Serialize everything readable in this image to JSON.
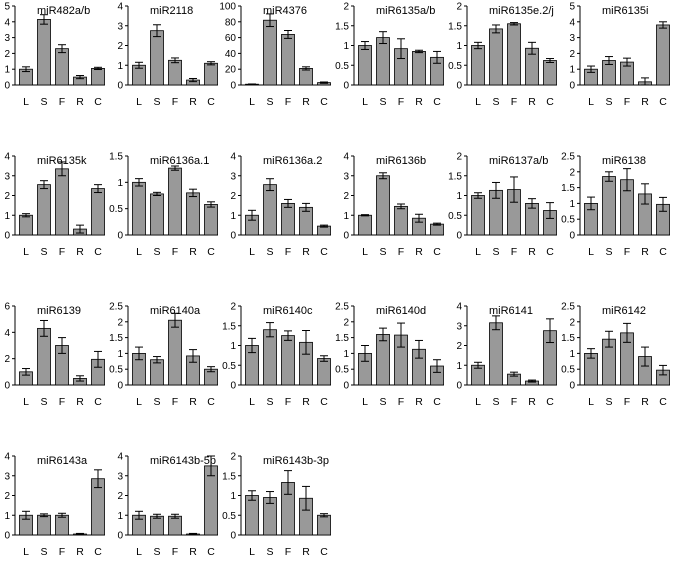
{
  "style": {
    "bar_color": "#999999",
    "axis_color": "#000000",
    "background": "#ffffff"
  },
  "chart_data": [
    {
      "type": "bar",
      "title": "miR482a/b",
      "categories": [
        "L",
        "S",
        "F",
        "R",
        "C"
      ],
      "ylim": [
        0,
        5
      ],
      "yticks": [
        "0",
        "1",
        "2",
        "3",
        "4",
        "5"
      ],
      "values": [
        1.0,
        4.15,
        2.3,
        0.5,
        1.05
      ],
      "errors": [
        0.15,
        0.3,
        0.25,
        0.1,
        0.07
      ]
    },
    {
      "type": "bar",
      "title": "miR2118",
      "categories": [
        "L",
        "S",
        "F",
        "R",
        "C"
      ],
      "ylim": [
        0,
        4
      ],
      "yticks": [
        "0",
        "1",
        "2",
        "3",
        "4"
      ],
      "values": [
        1.0,
        2.75,
        1.25,
        0.25,
        1.1
      ],
      "errors": [
        0.15,
        0.3,
        0.12,
        0.08,
        0.08
      ]
    },
    {
      "type": "bar",
      "title": "miR4376",
      "categories": [
        "L",
        "S",
        "F",
        "R",
        "C"
      ],
      "ylim": [
        0,
        100
      ],
      "yticks": [
        "0",
        "20",
        "40",
        "60",
        "80",
        "100"
      ],
      "values": [
        1.0,
        82.0,
        64.0,
        21.0,
        3.0
      ],
      "errors": [
        0.3,
        8.0,
        5.0,
        2.0,
        0.8
      ]
    },
    {
      "type": "bar",
      "title": "miR6135a/b",
      "categories": [
        "L",
        "S",
        "F",
        "R",
        "C"
      ],
      "ylim": [
        0,
        2
      ],
      "yticks": [
        "0",
        "0.5",
        "1",
        "1.5",
        "2"
      ],
      "values": [
        1.0,
        1.2,
        0.92,
        0.85,
        0.7
      ],
      "errors": [
        0.1,
        0.15,
        0.25,
        0.03,
        0.15
      ]
    },
    {
      "type": "bar",
      "title": "miR6135e.2/j",
      "categories": [
        "L",
        "S",
        "F",
        "R",
        "C"
      ],
      "ylim": [
        0,
        2
      ],
      "yticks": [
        "0",
        "0.5",
        "1",
        "1.5",
        "2"
      ],
      "values": [
        1.0,
        1.42,
        1.55,
        0.93,
        0.62
      ],
      "errors": [
        0.08,
        0.1,
        0.03,
        0.15,
        0.05
      ]
    },
    {
      "type": "bar",
      "title": "miR6135i",
      "categories": [
        "L",
        "S",
        "F",
        "R",
        "C"
      ],
      "ylim": [
        0,
        5
      ],
      "yticks": [
        "0",
        "1",
        "2",
        "3",
        "4",
        "5"
      ],
      "values": [
        1.0,
        1.55,
        1.45,
        0.2,
        3.8
      ],
      "errors": [
        0.2,
        0.25,
        0.25,
        0.25,
        0.2
      ]
    },
    {
      "type": "bar",
      "title": "miR6135k",
      "categories": [
        "L",
        "S",
        "F",
        "R",
        "C"
      ],
      "ylim": [
        0,
        4
      ],
      "yticks": [
        "0",
        "1",
        "2",
        "3",
        "4"
      ],
      "values": [
        1.0,
        2.55,
        3.35,
        0.3,
        2.35
      ],
      "errors": [
        0.08,
        0.2,
        0.35,
        0.2,
        0.2
      ]
    },
    {
      "type": "bar",
      "title": "miR6136a.1",
      "categories": [
        "L",
        "S",
        "F",
        "R",
        "C"
      ],
      "ylim": [
        0,
        1.5
      ],
      "yticks": [
        "0",
        "0.5",
        "1",
        "1.5"
      ],
      "values": [
        1.0,
        0.78,
        1.27,
        0.8,
        0.58
      ],
      "errors": [
        0.07,
        0.03,
        0.04,
        0.07,
        0.05
      ]
    },
    {
      "type": "bar",
      "title": "miR6136a.2",
      "categories": [
        "L",
        "S",
        "F",
        "R",
        "C"
      ],
      "ylim": [
        0,
        4
      ],
      "yticks": [
        "0",
        "1",
        "2",
        "3",
        "4"
      ],
      "values": [
        1.0,
        2.55,
        1.6,
        1.4,
        0.45
      ],
      "errors": [
        0.25,
        0.3,
        0.2,
        0.2,
        0.05
      ]
    },
    {
      "type": "bar",
      "title": "miR6136b",
      "categories": [
        "L",
        "S",
        "F",
        "R",
        "C"
      ],
      "ylim": [
        0,
        4
      ],
      "yticks": [
        "0",
        "1",
        "2",
        "3",
        "4"
      ],
      "values": [
        1.0,
        3.0,
        1.45,
        0.85,
        0.55
      ],
      "errors": [
        0.03,
        0.15,
        0.12,
        0.2,
        0.05
      ]
    },
    {
      "type": "bar",
      "title": "miR6137a/b",
      "categories": [
        "L",
        "S",
        "F",
        "R",
        "C"
      ],
      "ylim": [
        0,
        2
      ],
      "yticks": [
        "0",
        "0.5",
        "1",
        "1.5",
        "2"
      ],
      "values": [
        1.0,
        1.13,
        1.15,
        0.8,
        0.62
      ],
      "errors": [
        0.07,
        0.2,
        0.32,
        0.12,
        0.2
      ]
    },
    {
      "type": "bar",
      "title": "miR6138",
      "categories": [
        "L",
        "S",
        "F",
        "R",
        "C"
      ],
      "ylim": [
        0,
        2.5
      ],
      "yticks": [
        "0",
        "0.5",
        "1",
        "1.5",
        "2",
        "2.5"
      ],
      "values": [
        1.0,
        1.85,
        1.75,
        1.3,
        0.97
      ],
      "errors": [
        0.2,
        0.15,
        0.35,
        0.32,
        0.22
      ]
    },
    {
      "type": "bar",
      "title": "miR6139",
      "categories": [
        "L",
        "S",
        "F",
        "R",
        "C"
      ],
      "ylim": [
        0,
        6
      ],
      "yticks": [
        "0",
        "2",
        "4",
        "6"
      ],
      "values": [
        1.0,
        4.3,
        3.0,
        0.5,
        1.95
      ],
      "errors": [
        0.25,
        0.6,
        0.6,
        0.2,
        0.6
      ]
    },
    {
      "type": "bar",
      "title": "miR6140a",
      "categories": [
        "L",
        "S",
        "F",
        "R",
        "C"
      ],
      "ylim": [
        0,
        2.5
      ],
      "yticks": [
        "0",
        "0.5",
        "1",
        "1.5",
        "2",
        "2.5"
      ],
      "values": [
        1.0,
        0.8,
        2.05,
        0.92,
        0.5
      ],
      "errors": [
        0.2,
        0.1,
        0.22,
        0.2,
        0.08
      ]
    },
    {
      "type": "bar",
      "title": "miR6140c",
      "categories": [
        "L",
        "S",
        "F",
        "R",
        "C"
      ],
      "ylim": [
        0,
        2
      ],
      "yticks": [
        "0",
        "0.5",
        "1",
        "1.5",
        "2"
      ],
      "values": [
        1.0,
        1.4,
        1.25,
        1.08,
        0.67
      ],
      "errors": [
        0.18,
        0.18,
        0.12,
        0.3,
        0.07
      ]
    },
    {
      "type": "bar",
      "title": "miR6140d",
      "categories": [
        "L",
        "S",
        "F",
        "R",
        "C"
      ],
      "ylim": [
        0,
        2.5
      ],
      "yticks": [
        "0",
        "0.5",
        "1",
        "1.5",
        "2",
        "2.5"
      ],
      "values": [
        1.0,
        1.6,
        1.58,
        1.13,
        0.6
      ],
      "errors": [
        0.25,
        0.2,
        0.38,
        0.28,
        0.2
      ]
    },
    {
      "type": "bar",
      "title": "miR6141",
      "categories": [
        "L",
        "S",
        "F",
        "R",
        "C"
      ],
      "ylim": [
        0,
        4
      ],
      "yticks": [
        "0",
        "1",
        "2",
        "3",
        "4"
      ],
      "values": [
        1.0,
        3.15,
        0.55,
        0.2,
        2.75
      ],
      "errors": [
        0.15,
        0.35,
        0.1,
        0.05,
        0.6
      ]
    },
    {
      "type": "bar",
      "title": "miR6142",
      "categories": [
        "L",
        "S",
        "F",
        "R",
        "C"
      ],
      "ylim": [
        0,
        2.5
      ],
      "yticks": [
        "0",
        "0.5",
        "1",
        "1.5",
        "2",
        "2.5"
      ],
      "values": [
        1.0,
        1.45,
        1.65,
        0.9,
        0.47
      ],
      "errors": [
        0.15,
        0.25,
        0.3,
        0.3,
        0.15
      ]
    },
    {
      "type": "bar",
      "title": "miR6143a",
      "categories": [
        "L",
        "S",
        "F",
        "R",
        "C"
      ],
      "ylim": [
        0,
        4
      ],
      "yticks": [
        "0",
        "1",
        "2",
        "3",
        "4"
      ],
      "values": [
        1.0,
        1.0,
        1.0,
        0.05,
        2.85
      ],
      "errors": [
        0.2,
        0.07,
        0.1,
        0.03,
        0.45
      ]
    },
    {
      "type": "bar",
      "title": "miR6143b-5p",
      "categories": [
        "L",
        "S",
        "F",
        "R",
        "C"
      ],
      "ylim": [
        0,
        4
      ],
      "yticks": [
        "0",
        "1",
        "2",
        "3",
        "4"
      ],
      "values": [
        1.0,
        0.95,
        0.95,
        0.05,
        3.5
      ],
      "errors": [
        0.2,
        0.1,
        0.1,
        0.03,
        0.5
      ]
    },
    {
      "type": "bar",
      "title": "miR6143b-3p",
      "categories": [
        "L",
        "S",
        "F",
        "R",
        "C"
      ],
      "ylim": [
        0,
        2
      ],
      "yticks": [
        "0",
        "0.5",
        "1",
        "1.5",
        "2"
      ],
      "values": [
        1.0,
        0.95,
        1.33,
        0.93,
        0.5
      ],
      "errors": [
        0.12,
        0.15,
        0.3,
        0.3,
        0.04
      ]
    }
  ]
}
